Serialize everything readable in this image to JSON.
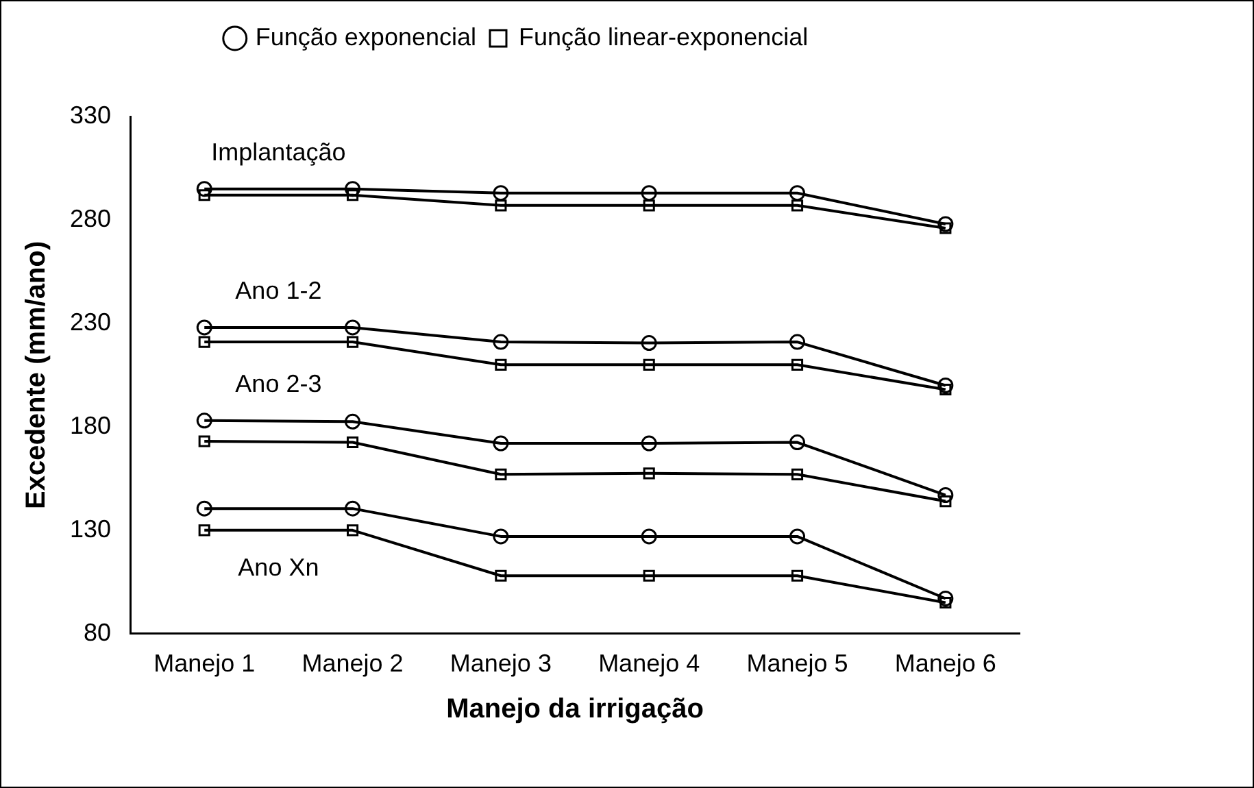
{
  "chart_data": {
    "type": "line",
    "xlabel": "Manejo da irrigação",
    "ylabel": "Excedente (mm/ano)",
    "categories": [
      "Manejo 1",
      "Manejo 2",
      "Manejo 3",
      "Manejo 4",
      "Manejo 5",
      "Manejo 6"
    ],
    "ylim": [
      80,
      330
    ],
    "yticks": [
      80,
      130,
      180,
      230,
      280,
      330
    ],
    "grid": false,
    "legend": "top",
    "line_style": "solid",
    "series": [
      {
        "name": "Função exponencial",
        "color": "#000000",
        "marker": "circle",
        "values": [
          295,
          295,
          293,
          293,
          293,
          278
        ]
      },
      {
        "name": "Função linear-exponencial",
        "color": "#000000",
        "marker": "square",
        "values": [
          292,
          292,
          287,
          287,
          287,
          276
        ]
      },
      {
        "color": "#000000",
        "marker": "circle",
        "values": [
          228,
          228,
          221,
          220.5,
          221,
          200
        ]
      },
      {
        "color": "#000000",
        "marker": "square",
        "values": [
          221,
          221,
          210,
          210,
          210,
          198
        ]
      },
      {
        "color": "#000000",
        "marker": "circle",
        "values": [
          183,
          182.5,
          172,
          172,
          172.5,
          147
        ]
      },
      {
        "color": "#000000",
        "marker": "square",
        "values": [
          173,
          172.5,
          157,
          157.5,
          157,
          144
        ]
      },
      {
        "color": "#000000",
        "marker": "circle",
        "values": [
          140.5,
          140.5,
          127,
          127,
          127,
          97
        ]
      },
      {
        "color": "#000000",
        "marker": "square",
        "values": [
          130,
          130,
          108,
          108,
          108,
          95
        ]
      }
    ],
    "annotations": [
      "Implantação",
      "Ano 1-2",
      "Ano 2-3",
      "Ano Xn"
    ]
  }
}
